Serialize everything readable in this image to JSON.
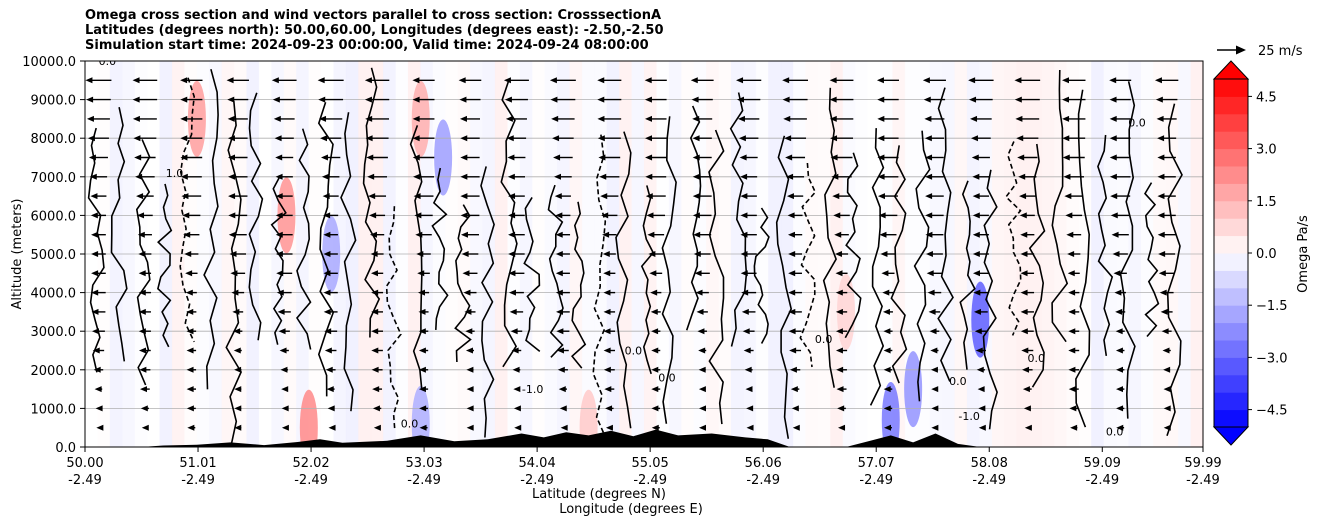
{
  "chart_data": {
    "type": "heatmap",
    "title_lines": [
      "Omega cross section and wind vectors parallel to cross section: CrosssectionA",
      "Latitudes (degrees north): 50.00,60.00, Longitudes (degrees east): -2.50,-2.50",
      "Simulation start time: 2024-09-23 00:00:00, Valid time: 2024-09-24 08:00:00"
    ],
    "xlabel_line1": "Latitude (degrees N)",
    "xlabel_line2": "Longitude (degrees E)",
    "ylabel": "Altitude (meters)",
    "x_range": [
      50.0,
      59.99
    ],
    "ylim": [
      0,
      10000
    ],
    "x_ticks": [
      {
        "lat": "50.00",
        "lon": "-2.49",
        "value": 50.0
      },
      {
        "lat": "51.01",
        "lon": "-2.49",
        "value": 51.01
      },
      {
        "lat": "52.02",
        "lon": "-2.49",
        "value": 52.02
      },
      {
        "lat": "53.03",
        "lon": "-2.49",
        "value": 53.03
      },
      {
        "lat": "54.04",
        "lon": "-2.49",
        "value": 54.04
      },
      {
        "lat": "55.05",
        "lon": "-2.49",
        "value": 55.05
      },
      {
        "lat": "56.06",
        "lon": "-2.49",
        "value": 56.06
      },
      {
        "lat": "57.07",
        "lon": "-2.49",
        "value": 57.07
      },
      {
        "lat": "58.08",
        "lon": "-2.49",
        "value": 58.08
      },
      {
        "lat": "59.09",
        "lon": "-2.49",
        "value": 59.09
      },
      {
        "lat": "59.99",
        "lon": "-2.49",
        "value": 59.99
      }
    ],
    "y_ticks": [
      {
        "label": "0.0",
        "value": 0
      },
      {
        "label": "1000.0",
        "value": 1000
      },
      {
        "label": "2000.0",
        "value": 2000
      },
      {
        "label": "3000.0",
        "value": 3000
      },
      {
        "label": "4000.0",
        "value": 4000
      },
      {
        "label": "5000.0",
        "value": 5000
      },
      {
        "label": "6000.0",
        "value": 6000
      },
      {
        "label": "7000.0",
        "value": 7000
      },
      {
        "label": "8000.0",
        "value": 8000
      },
      {
        "label": "9000.0",
        "value": 9000
      },
      {
        "label": "10000.0",
        "value": 10000
      }
    ],
    "grid": "horizontal",
    "colorbar": {
      "label": "Omega Pa/s",
      "range": [
        -5,
        5
      ],
      "extend": "both",
      "ticks": [
        {
          "label": "4.5",
          "value": 4.5
        },
        {
          "label": "3.0",
          "value": 3.0
        },
        {
          "label": "1.5",
          "value": 1.5
        },
        {
          "label": "0.0",
          "value": 0.0
        },
        {
          "label": "−1.5",
          "value": -1.5
        },
        {
          "label": "−3.0",
          "value": -3.0
        },
        {
          "label": "−4.5",
          "value": -4.5
        }
      ],
      "positive_color": "#ff0000",
      "negative_color": "#0000ff"
    },
    "quiver_key": {
      "label": "25 m/s",
      "speed": 25
    },
    "wind_direction": "southward (toward lower latitude) at upper levels",
    "omega_patches": [
      {
        "lat": 51.0,
        "alt": 8500,
        "value": 1.8
      },
      {
        "lat": 51.8,
        "alt": 6000,
        "value": 2.0
      },
      {
        "lat": 52.2,
        "alt": 5000,
        "value": -1.6
      },
      {
        "lat": 53.0,
        "alt": 8500,
        "value": 1.5
      },
      {
        "lat": 53.2,
        "alt": 7500,
        "value": -1.8
      },
      {
        "lat": 52.0,
        "alt": 500,
        "value": 2.2
      },
      {
        "lat": 53.0,
        "alt": 600,
        "value": -1.5
      },
      {
        "lat": 57.2,
        "alt": 700,
        "value": -2.5
      },
      {
        "lat": 57.4,
        "alt": 1500,
        "value": -2.0
      },
      {
        "lat": 58.0,
        "alt": 3300,
        "value": -3.0
      },
      {
        "lat": 56.8,
        "alt": 3500,
        "value": 0.8
      },
      {
        "lat": 54.5,
        "alt": 500,
        "value": 1.0
      }
    ],
    "contour_labels": [
      {
        "text": "0.0",
        "lat": 54.9,
        "alt": 2400
      },
      {
        "text": "-1.0",
        "lat": 54.0,
        "alt": 1400
      },
      {
        "text": "0.0",
        "lat": 58.5,
        "alt": 2200
      },
      {
        "text": "0.0",
        "lat": 59.4,
        "alt": 8300
      },
      {
        "text": "0.0",
        "lat": 57.8,
        "alt": 1600
      },
      {
        "text": "-1.0",
        "lat": 57.9,
        "alt": 700
      },
      {
        "text": "0.0",
        "lat": 56.6,
        "alt": 2700
      },
      {
        "text": "0.0",
        "lat": 55.2,
        "alt": 1700
      },
      {
        "text": "0.0",
        "lat": 50.2,
        "alt": 9900
      },
      {
        "text": "1.0",
        "lat": 50.8,
        "alt": 7000
      },
      {
        "text": "0.0",
        "lat": 59.2,
        "alt": 300
      },
      {
        "text": "0.0",
        "lat": 52.9,
        "alt": 500
      }
    ]
  }
}
